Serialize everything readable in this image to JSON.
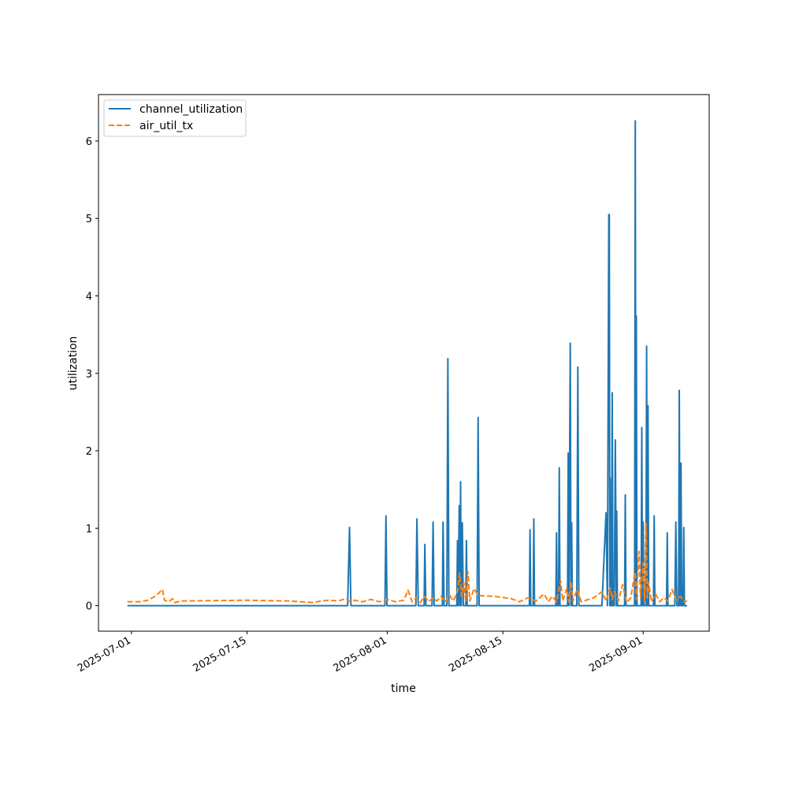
{
  "chart_data": {
    "type": "line",
    "title": "",
    "xlabel": "time",
    "ylabel": "utilization",
    "xlim": [
      "2025-06-27T00:00",
      "2025-09-09T00:00"
    ],
    "ylim": [
      -0.33,
      6.6
    ],
    "grid": false,
    "legend_position": "top-left",
    "x_ticks": [
      {
        "value": "2025-07-01",
        "label": "2025-07-01"
      },
      {
        "value": "2025-07-15",
        "label": "2025-07-15"
      },
      {
        "value": "2025-08-01",
        "label": "2025-08-01"
      },
      {
        "value": "2025-08-15",
        "label": "2025-08-15"
      },
      {
        "value": "2025-09-01",
        "label": "2025-09-01"
      }
    ],
    "y_ticks": [
      {
        "value": 0,
        "label": "0"
      },
      {
        "value": 1,
        "label": "1"
      },
      {
        "value": 2,
        "label": "2"
      },
      {
        "value": 3,
        "label": "3"
      },
      {
        "value": 4,
        "label": "4"
      },
      {
        "value": 5,
        "label": "5"
      },
      {
        "value": 6,
        "label": "6"
      }
    ],
    "series": [
      {
        "name": "channel_utilization",
        "color": "#1f77b4",
        "dash": "solid",
        "points": [
          [
            "2025-06-30T12:00",
            0
          ],
          [
            "2025-07-27T04:30",
            0
          ],
          [
            "2025-07-27T10:00",
            1.01
          ],
          [
            "2025-07-27T14:00",
            0
          ],
          [
            "2025-07-31T17:00",
            0
          ],
          [
            "2025-07-31T20:00",
            1.16
          ],
          [
            "2025-07-31T23:00",
            0
          ],
          [
            "2025-08-04T11:00",
            0
          ],
          [
            "2025-08-04T14:00",
            1.12
          ],
          [
            "2025-08-04T18:00",
            0
          ],
          [
            "2025-08-05T11:00",
            0
          ],
          [
            "2025-08-05T13:00",
            0.79
          ],
          [
            "2025-08-05T16:00",
            0
          ],
          [
            "2025-08-06T10:00",
            0
          ],
          [
            "2025-08-06T13:00",
            1.08
          ],
          [
            "2025-08-06T16:00",
            0
          ],
          [
            "2025-08-07T16:00",
            0
          ],
          [
            "2025-08-07T18:00",
            1.08
          ],
          [
            "2025-08-07T21:00",
            0
          ],
          [
            "2025-08-08T05:00",
            0
          ],
          [
            "2025-08-08T08:00",
            3.19
          ],
          [
            "2025-08-08T11:00",
            0
          ],
          [
            "2025-08-09T10:00",
            0
          ],
          [
            "2025-08-09T12:00",
            0.84
          ],
          [
            "2025-08-09T14:00",
            0
          ],
          [
            "2025-08-09T17:00",
            1.29
          ],
          [
            "2025-08-09T19:00",
            0
          ],
          [
            "2025-08-09T21:00",
            1.6
          ],
          [
            "2025-08-09T23:00",
            0
          ],
          [
            "2025-08-10T02:00",
            1.07
          ],
          [
            "2025-08-10T05:00",
            0
          ],
          [
            "2025-08-10T12:00",
            0
          ],
          [
            "2025-08-10T14:00",
            0.84
          ],
          [
            "2025-08-10T16:00",
            0
          ],
          [
            "2025-08-11T21:00",
            0
          ],
          [
            "2025-08-12T00:00",
            2.43
          ],
          [
            "2025-08-12T03:00",
            0
          ],
          [
            "2025-08-18T05:00",
            0
          ],
          [
            "2025-08-18T07:00",
            0.98
          ],
          [
            "2025-08-18T09:00",
            0
          ],
          [
            "2025-08-18T16:00",
            0
          ],
          [
            "2025-08-18T18:00",
            1.12
          ],
          [
            "2025-08-18T20:00",
            0
          ],
          [
            "2025-08-21T10:00",
            0
          ],
          [
            "2025-08-21T12:00",
            0.94
          ],
          [
            "2025-08-21T14:00",
            0
          ],
          [
            "2025-08-21T18:00",
            0
          ],
          [
            "2025-08-21T20:00",
            1.78
          ],
          [
            "2025-08-21T22:00",
            0
          ],
          [
            "2025-08-22T20:00",
            0
          ],
          [
            "2025-08-22T22:00",
            1.97
          ],
          [
            "2025-08-23T00:00",
            0
          ],
          [
            "2025-08-23T04:00",
            3.39
          ],
          [
            "2025-08-23T06:00",
            0
          ],
          [
            "2025-08-23T08:00",
            1.07
          ],
          [
            "2025-08-23T10:00",
            0
          ],
          [
            "2025-08-23T23:00",
            0
          ],
          [
            "2025-08-24T02:00",
            3.08
          ],
          [
            "2025-08-24T05:00",
            0
          ],
          [
            "2025-08-27T00:00",
            0
          ],
          [
            "2025-08-27T12:00",
            1.2
          ],
          [
            "2025-08-27T16:00",
            0
          ],
          [
            "2025-08-27T20:00",
            5.05
          ],
          [
            "2025-08-27T21:30",
            5.05
          ],
          [
            "2025-08-27T23:00",
            0
          ],
          [
            "2025-08-28T00:00",
            1.65
          ],
          [
            "2025-08-28T02:00",
            0
          ],
          [
            "2025-08-28T03:00",
            1.06
          ],
          [
            "2025-08-28T04:00",
            0
          ],
          [
            "2025-08-28T06:00",
            2.75
          ],
          [
            "2025-08-28T08:00",
            0
          ],
          [
            "2025-08-28T12:00",
            0
          ],
          [
            "2025-08-28T15:00",
            2.14
          ],
          [
            "2025-08-28T18:00",
            0
          ],
          [
            "2025-08-28T19:00",
            1.22
          ],
          [
            "2025-08-28T21:00",
            0
          ],
          [
            "2025-08-29T18:00",
            0
          ],
          [
            "2025-08-29T20:00",
            1.43
          ],
          [
            "2025-08-29T22:00",
            0
          ],
          [
            "2025-08-30T23:00",
            0
          ],
          [
            "2025-08-31T01:00",
            6.26
          ],
          [
            "2025-08-31T03:00",
            0
          ],
          [
            "2025-08-31T04:00",
            3.74
          ],
          [
            "2025-08-31T06:00",
            0
          ],
          [
            "2025-08-31T18:00",
            0
          ],
          [
            "2025-08-31T20:00",
            2.3
          ],
          [
            "2025-08-31T22:00",
            0
          ],
          [
            "2025-09-01T00:00",
            1.08
          ],
          [
            "2025-09-01T02:00",
            0
          ],
          [
            "2025-09-01T08:00",
            0
          ],
          [
            "2025-09-01T10:00",
            3.35
          ],
          [
            "2025-09-01T12:00",
            0
          ],
          [
            "2025-09-01T14:00",
            2.58
          ],
          [
            "2025-09-01T16:00",
            0
          ],
          [
            "2025-09-02T06:00",
            0
          ],
          [
            "2025-09-02T08:00",
            1.16
          ],
          [
            "2025-09-02T10:00",
            0
          ],
          [
            "2025-09-03T20:00",
            0
          ],
          [
            "2025-09-03T22:00",
            0.94
          ],
          [
            "2025-09-04T00:00",
            0
          ],
          [
            "2025-09-04T20:00",
            0
          ],
          [
            "2025-09-04T23:00",
            1.08
          ],
          [
            "2025-09-05T02:00",
            0
          ],
          [
            "2025-09-05T07:00",
            0
          ],
          [
            "2025-09-05T09:00",
            2.78
          ],
          [
            "2025-09-05T11:00",
            0
          ],
          [
            "2025-09-05T12:00",
            0
          ],
          [
            "2025-09-05T14:00",
            1.84
          ],
          [
            "2025-09-05T16:00",
            0
          ],
          [
            "2025-09-05T20:00",
            0
          ],
          [
            "2025-09-05T22:00",
            1.01
          ],
          [
            "2025-09-06T00:00",
            0
          ],
          [
            "2025-09-06T08:00",
            0
          ]
        ]
      },
      {
        "name": "air_util_tx",
        "color": "#ff7f0e",
        "dash": "dashed",
        "points": [
          [
            "2025-06-30T12:00",
            0.05
          ],
          [
            "2025-07-02T00:00",
            0.05
          ],
          [
            "2025-07-03T00:00",
            0.07
          ],
          [
            "2025-07-04T00:00",
            0.13
          ],
          [
            "2025-07-04T18:00",
            0.21
          ],
          [
            "2025-07-05T00:00",
            0.07
          ],
          [
            "2025-07-05T12:00",
            0.05
          ],
          [
            "2025-07-06T00:00",
            0.09
          ],
          [
            "2025-07-06T06:00",
            0.04
          ],
          [
            "2025-07-07T00:00",
            0.06
          ],
          [
            "2025-07-15T00:00",
            0.07
          ],
          [
            "2025-07-20T00:00",
            0.06
          ],
          [
            "2025-07-23T00:00",
            0.04
          ],
          [
            "2025-07-24T00:00",
            0.06
          ],
          [
            "2025-07-25T00:00",
            0.07
          ],
          [
            "2025-07-26T00:00",
            0.06
          ],
          [
            "2025-07-27T00:00",
            0.09
          ],
          [
            "2025-07-27T12:00",
            0.05
          ],
          [
            "2025-07-28T00:00",
            0.07
          ],
          [
            "2025-07-29T00:00",
            0.05
          ],
          [
            "2025-07-30T00:00",
            0.08
          ],
          [
            "2025-07-31T00:00",
            0.05
          ],
          [
            "2025-08-01T00:00",
            0.08
          ],
          [
            "2025-08-02T00:00",
            0.05
          ],
          [
            "2025-08-03T00:00",
            0.07
          ],
          [
            "2025-08-03T12:00",
            0.2
          ],
          [
            "2025-08-04T00:00",
            0.05
          ],
          [
            "2025-08-04T12:00",
            0.1
          ],
          [
            "2025-08-05T00:00",
            0.04
          ],
          [
            "2025-08-05T12:00",
            0.12
          ],
          [
            "2025-08-06T00:00",
            0.05
          ],
          [
            "2025-08-06T12:00",
            0.1
          ],
          [
            "2025-08-07T00:00",
            0.06
          ],
          [
            "2025-08-07T12:00",
            0.12
          ],
          [
            "2025-08-08T00:00",
            0.05
          ],
          [
            "2025-08-08T12:00",
            0.14
          ],
          [
            "2025-08-09T00:00",
            0.06
          ],
          [
            "2025-08-09T12:00",
            0.18
          ],
          [
            "2025-08-09T18:00",
            0.42
          ],
          [
            "2025-08-10T00:00",
            0.12
          ],
          [
            "2025-08-10T06:00",
            0.3
          ],
          [
            "2025-08-10T12:00",
            0.06
          ],
          [
            "2025-08-10T18:00",
            0.44
          ],
          [
            "2025-08-11T00:00",
            0.06
          ],
          [
            "2025-08-11T12:00",
            0.22
          ],
          [
            "2025-08-12T00:00",
            0.13
          ],
          [
            "2025-08-14T00:00",
            0.12
          ],
          [
            "2025-08-16T00:00",
            0.09
          ],
          [
            "2025-08-17T00:00",
            0.05
          ],
          [
            "2025-08-18T00:00",
            0.1
          ],
          [
            "2025-08-19T00:00",
            0.06
          ],
          [
            "2025-08-20T00:00",
            0.15
          ],
          [
            "2025-08-20T12:00",
            0.05
          ],
          [
            "2025-08-21T00:00",
            0.12
          ],
          [
            "2025-08-21T12:00",
            0.05
          ],
          [
            "2025-08-22T00:00",
            0.32
          ],
          [
            "2025-08-22T06:00",
            0.06
          ],
          [
            "2025-08-22T18:00",
            0.22
          ],
          [
            "2025-08-23T00:00",
            0.05
          ],
          [
            "2025-08-23T06:00",
            0.31
          ],
          [
            "2025-08-23T12:00",
            0.06
          ],
          [
            "2025-08-24T00:00",
            0.21
          ],
          [
            "2025-08-24T12:00",
            0.05
          ],
          [
            "2025-08-26T00:00",
            0.1
          ],
          [
            "2025-08-27T00:00",
            0.18
          ],
          [
            "2025-08-27T12:00",
            0.06
          ],
          [
            "2025-08-28T00:00",
            0.23
          ],
          [
            "2025-08-28T06:00",
            0.08
          ],
          [
            "2025-08-28T12:00",
            0.18
          ],
          [
            "2025-08-29T00:00",
            0.06
          ],
          [
            "2025-08-29T12:00",
            0.27
          ],
          [
            "2025-08-30T00:00",
            0.04
          ],
          [
            "2025-08-30T12:00",
            0.1
          ],
          [
            "2025-08-31T00:00",
            0.43
          ],
          [
            "2025-08-31T04:00",
            0.08
          ],
          [
            "2025-08-31T12:00",
            0.7
          ],
          [
            "2025-08-31T16:00",
            0.12
          ],
          [
            "2025-09-01T00:00",
            0.55
          ],
          [
            "2025-09-01T04:00",
            0.06
          ],
          [
            "2025-09-01T08:00",
            1.06
          ],
          [
            "2025-09-01T12:00",
            0.1
          ],
          [
            "2025-09-01T16:00",
            0.3
          ],
          [
            "2025-09-02T00:00",
            0.05
          ],
          [
            "2025-09-02T12:00",
            0.15
          ],
          [
            "2025-09-03T00:00",
            0.05
          ],
          [
            "2025-09-03T12:00",
            0.1
          ],
          [
            "2025-09-04T00:00",
            0.06
          ],
          [
            "2025-09-04T12:00",
            0.21
          ],
          [
            "2025-09-05T00:00",
            0.07
          ],
          [
            "2025-09-05T12:00",
            0.12
          ],
          [
            "2025-09-06T00:00",
            0.05
          ],
          [
            "2025-09-06T08:00",
            0.06
          ]
        ]
      }
    ]
  }
}
